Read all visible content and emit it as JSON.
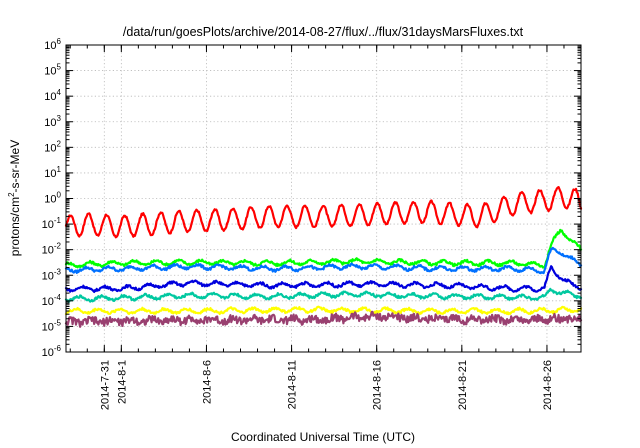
{
  "chart_data": {
    "type": "line",
    "title": "/data/run/goesPlots/archive/2014-08-27/flux/../flux/31daysMarsFluxes.txt",
    "xlabel": "Coordinated Universal Time (UTC)",
    "ylabel_prefix": "protons/cm",
    "ylabel_sup": "2",
    "ylabel_suffix": "-s-sr-MeV",
    "y_scale": "log",
    "ylim": [
      1e-06,
      1000000.0
    ],
    "y_ticks": [
      {
        "base": "10",
        "exp": "-6",
        "value": 1e-06
      },
      {
        "base": "10",
        "exp": "-5",
        "value": 1e-05
      },
      {
        "base": "10",
        "exp": "-4",
        "value": 0.0001
      },
      {
        "base": "10",
        "exp": "-3",
        "value": 0.001
      },
      {
        "base": "10",
        "exp": "-2",
        "value": 0.01
      },
      {
        "base": "10",
        "exp": "-1",
        "value": 0.1
      },
      {
        "base": "10",
        "exp": "0",
        "value": 1
      },
      {
        "base": "10",
        "exp": "1",
        "value": 10
      },
      {
        "base": "10",
        "exp": "2",
        "value": 100
      },
      {
        "base": "10",
        "exp": "3",
        "value": 1000
      },
      {
        "base": "10",
        "exp": "4",
        "value": 10000
      },
      {
        "base": "10",
        "exp": "5",
        "value": 100000
      },
      {
        "base": "10",
        "exp": "6",
        "value": 1000000
      }
    ],
    "x_ticks": [
      {
        "label": "2014-7-31",
        "date": "2014-07-31"
      },
      {
        "label": "2014-8-1",
        "date": "2014-08-01"
      },
      {
        "label": "2014-8-6",
        "date": "2014-08-06"
      },
      {
        "label": "2014-8-11",
        "date": "2014-08-11"
      },
      {
        "label": "2014-8-16",
        "date": "2014-08-16"
      },
      {
        "label": "2014-8-21",
        "date": "2014-08-21"
      },
      {
        "label": "2014-8-26",
        "date": "2014-08-26"
      }
    ],
    "xlim": [
      "2014-07-28T18:00",
      "2014-08-28T00:00"
    ],
    "grid": true,
    "series": [
      {
        "color": "#ff0000",
        "x": [
          "2014-07-28T18:00",
          "2014-07-30T00:00",
          "2014-08-01T00:00",
          "2014-08-04T00:00",
          "2014-08-07T00:00",
          "2014-08-10T00:00",
          "2014-08-13T00:00",
          "2014-08-16T00:00",
          "2014-08-19T00:00",
          "2014-08-22T00:00",
          "2014-08-24T00:00",
          "2014-08-25T12:00",
          "2014-08-26T12:00",
          "2014-08-27T12:00",
          "2014-08-28T00:00"
        ],
        "y": [
          0.08,
          0.1,
          0.08,
          0.12,
          0.15,
          0.2,
          0.2,
          0.25,
          0.3,
          0.2,
          0.6,
          0.8,
          1.0,
          1.2,
          0.5
        ],
        "pattern": "oscillating"
      },
      {
        "color": "#00ff00",
        "x": [
          "2014-07-28T18:00",
          "2014-08-01T00:00",
          "2014-08-05T00:00",
          "2014-08-10T00:00",
          "2014-08-15T00:00",
          "2014-08-20T00:00",
          "2014-08-24T00:00",
          "2014-08-25T20:00",
          "2014-08-26T08:00",
          "2014-08-26T20:00",
          "2014-08-27T12:00",
          "2014-08-28T00:00"
        ],
        "y": [
          0.0025,
          0.003,
          0.0032,
          0.003,
          0.0035,
          0.003,
          0.003,
          0.0025,
          0.02,
          0.06,
          0.02,
          0.01
        ],
        "pattern": "noisy"
      },
      {
        "color": "#0070ff",
        "x": [
          "2014-07-28T18:00",
          "2014-08-01T00:00",
          "2014-08-05T00:00",
          "2014-08-10T00:00",
          "2014-08-15T00:00",
          "2014-08-20T00:00",
          "2014-08-24T00:00",
          "2014-08-25T20:00",
          "2014-08-26T06:00",
          "2014-08-26T20:00",
          "2014-08-27T12:00",
          "2014-08-28T00:00"
        ],
        "y": [
          0.0016,
          0.0018,
          0.0022,
          0.0018,
          0.0022,
          0.0018,
          0.0018,
          0.0015,
          0.01,
          0.008,
          0.004,
          0.0025
        ],
        "pattern": "noisy"
      },
      {
        "color": "#0000dd",
        "x": [
          "2014-07-28T18:00",
          "2014-08-01T00:00",
          "2014-08-05T00:00",
          "2014-08-10T00:00",
          "2014-08-15T00:00",
          "2014-08-20T00:00",
          "2014-08-24T00:00",
          "2014-08-25T20:00",
          "2014-08-26T06:00",
          "2014-08-26T20:00",
          "2014-08-27T12:00",
          "2014-08-28T00:00"
        ],
        "y": [
          0.0003,
          0.0003,
          0.0005,
          0.0004,
          0.00045,
          0.0004,
          0.0003,
          0.0003,
          0.002,
          0.0008,
          0.0004,
          0.00035
        ],
        "pattern": "noisy"
      },
      {
        "color": "#00c8a0",
        "x": [
          "2014-07-28T18:00",
          "2014-08-01T00:00",
          "2014-08-05T00:00",
          "2014-08-10T00:00",
          "2014-08-15T00:00",
          "2014-08-20T00:00",
          "2014-08-24T00:00",
          "2014-08-25T20:00",
          "2014-08-26T06:00",
          "2014-08-26T20:00",
          "2014-08-27T12:00",
          "2014-08-28T00:00"
        ],
        "y": [
          0.00012,
          0.00013,
          0.00016,
          0.00015,
          0.00018,
          0.00015,
          0.00014,
          0.00013,
          0.0003,
          0.0002,
          0.00018,
          0.00016
        ],
        "pattern": "noisy"
      },
      {
        "color": "#ffff00",
        "x": [
          "2014-07-28T18:00",
          "2014-08-05T00:00",
          "2014-08-12T00:00",
          "2014-08-19T00:00",
          "2014-08-24T00:00",
          "2014-08-28T00:00"
        ],
        "y": [
          4e-05,
          4e-05,
          4.5e-05,
          4e-05,
          4e-05,
          4.5e-05
        ],
        "pattern": "noisy"
      },
      {
        "color": "#994070",
        "x": [
          "2014-07-28T18:00",
          "2014-08-05T00:00",
          "2014-08-12T00:00",
          "2014-08-16T00:00",
          "2014-08-19T00:00",
          "2014-08-24T00:00",
          "2014-08-28T00:00"
        ],
        "y": [
          1.5e-05,
          1.8e-05,
          1.8e-05,
          2.5e-05,
          2e-05,
          1.8e-05,
          2e-05
        ],
        "pattern": "jagged"
      }
    ]
  }
}
